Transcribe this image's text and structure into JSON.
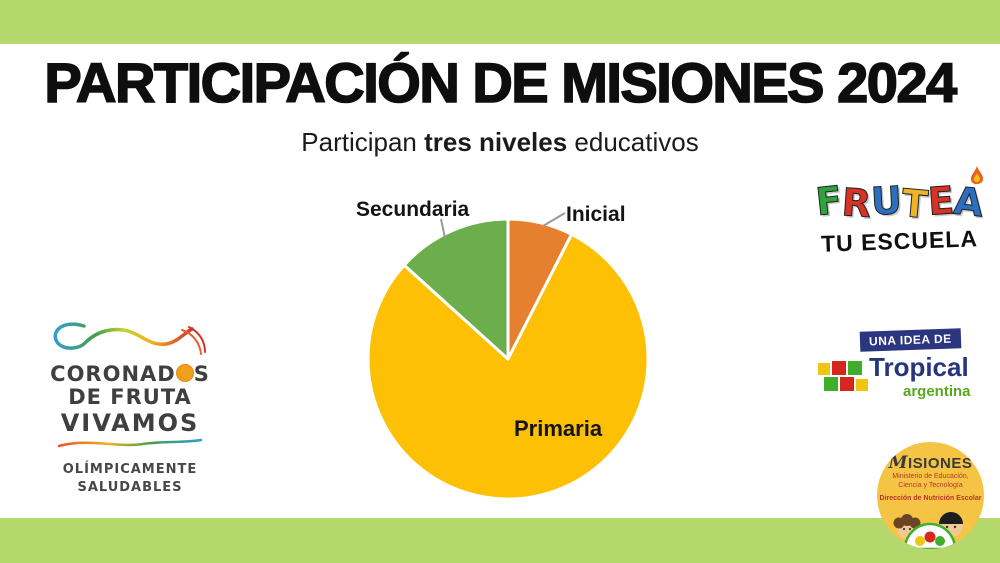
{
  "theme": {
    "background": "#ffffff",
    "bar_color": "#b4d86b",
    "title_color": "#0e0e0e",
    "label_color": "#141414",
    "leader_line_color": "#9a9a9a"
  },
  "header": {
    "title": "PARTICIPACIÓN DE MISIONES 2024",
    "subtitle_prefix": "Participan ",
    "subtitle_bold": "tres niveles",
    "subtitle_suffix": " educativos"
  },
  "chart_data": {
    "type": "pie",
    "labels": [
      "Inicial",
      "Primaria",
      "Secundaria"
    ],
    "values": [
      7.5,
      79.2,
      13.3
    ],
    "values_note": "percent estimated from slice angles; no numeric labels shown on chart",
    "colors": [
      "#e5802f",
      "#fdc005",
      "#6bae4b"
    ],
    "start_angle_deg": 0,
    "separator_color": "#ffffff",
    "label_placement": "Inicial and Secundaria outside with gray leader lines; Primaria inside slice"
  },
  "coronados": {
    "line1_pre": "CORONAD",
    "line1_medal_letter": "O",
    "line1_post": "S",
    "line2": "DE FRUTA",
    "line3": "VIVAMOS",
    "tagline1": "OLÍMPICAMENTE",
    "tagline2": "SALUDABLES",
    "medal_color": "#f09f1d"
  },
  "frutea": {
    "word": "FRUTEÁ",
    "letters": [
      {
        "ch": "F",
        "color": "#2ea43c"
      },
      {
        "ch": "R",
        "color": "#d63226"
      },
      {
        "ch": "U",
        "color": "#2b6fbe"
      },
      {
        "ch": "T",
        "color": "#f0b426"
      },
      {
        "ch": "E",
        "color": "#d63226"
      },
      {
        "ch": "A",
        "color": "#2b6fbe"
      }
    ],
    "subtitle": "TU ESCUELA",
    "flame_colors": [
      "#e8641e",
      "#f3c11b"
    ]
  },
  "tropical": {
    "badge": "UNA IDEA DE",
    "badge_bg": "#2b3580",
    "name": "Tropical",
    "name_color": "#27357d",
    "country": "argentina",
    "country_color": "#58a81c",
    "mosaic_colors": [
      "#f2c30f",
      "#d6281e",
      "#3fae2a",
      "#3fae2a",
      "#d6281e",
      "#f2c30f"
    ]
  },
  "misiones": {
    "name_initial": "M",
    "name_rest": "ISIONES",
    "line1": "Ministerio de Educación,",
    "line2": "Ciencia y Tecnología",
    "line3": "Dirección de Nutrición Escolar",
    "seal_color": "#f6c445"
  }
}
